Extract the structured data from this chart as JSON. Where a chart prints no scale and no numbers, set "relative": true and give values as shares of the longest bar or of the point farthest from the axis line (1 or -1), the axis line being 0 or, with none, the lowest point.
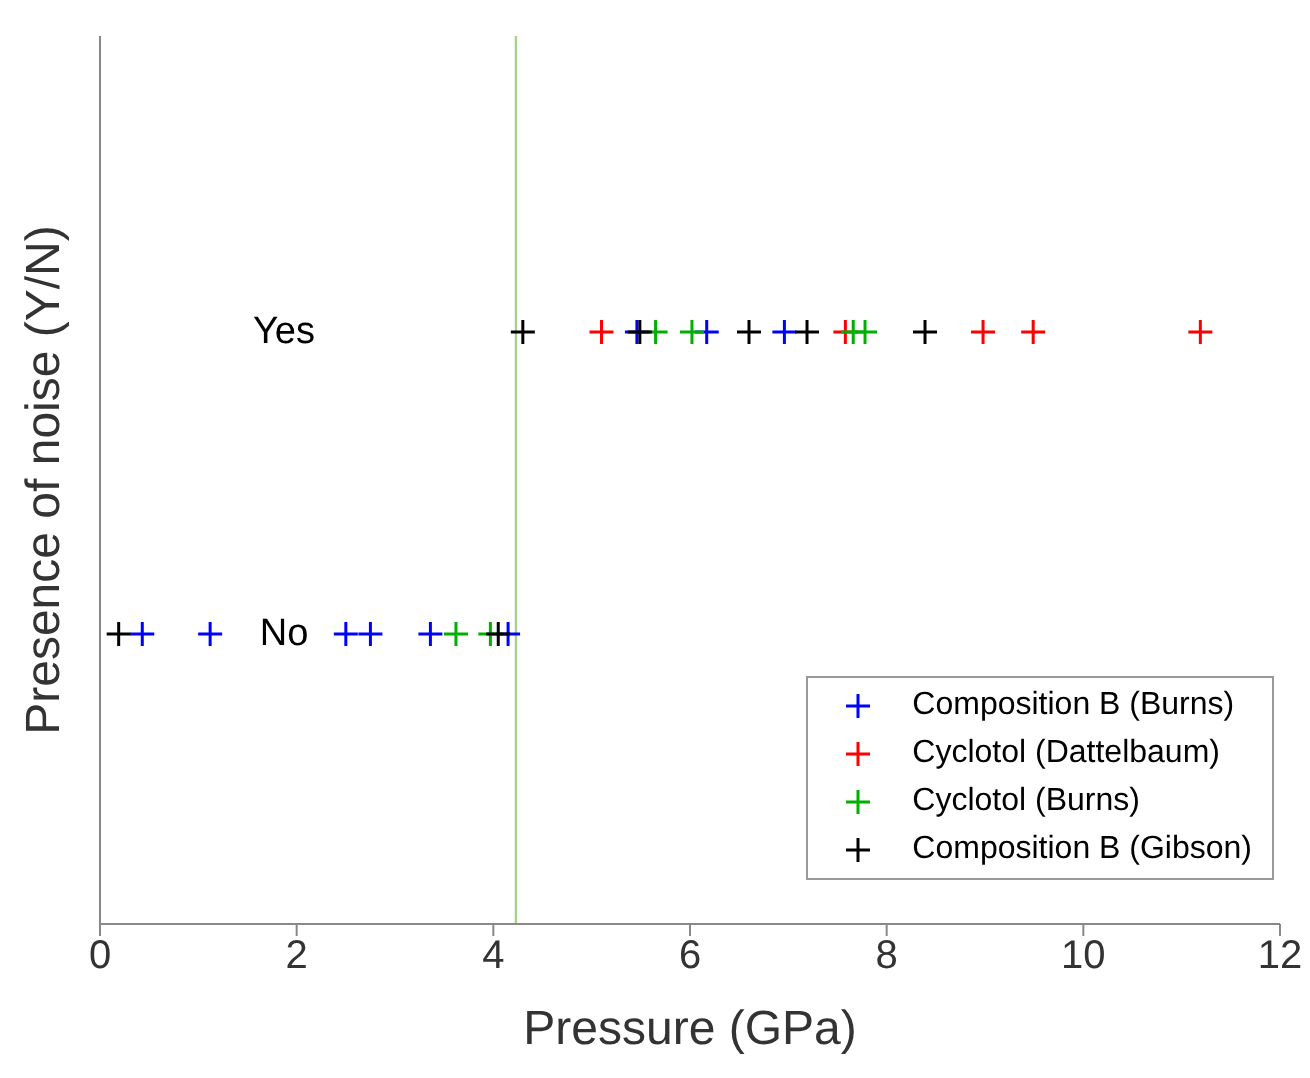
{
  "chart_data": {
    "type": "scatter",
    "xlabel": "Pressure (GPa)",
    "ylabel": "Presence of noise (Y/N)",
    "xlim": [
      0,
      12
    ],
    "xticks": [
      0,
      2,
      4,
      6,
      8,
      10,
      12
    ],
    "relative": true,
    "tick_labels": "x",
    "marker": "cross",
    "legend": "bottom right",
    "grid": false,
    "series": [
      {
        "name": "Composition B (Burns)",
        "color": "#0000ff",
        "x": [
          0.43,
          1.12,
          2.5,
          2.75,
          3.36,
          4.15,
          5.46,
          6.17,
          6.96
        ],
        "values": [
          0.49,
          0.49,
          0.49,
          0.49,
          0.49,
          0.49,
          1,
          1,
          1
        ]
      },
      {
        "name": "Cyclotol (Dattelbaum)",
        "color": "#ff0000",
        "x": [
          5.1,
          7.58,
          8.98,
          9.49,
          11.19
        ],
        "values": [
          1,
          1,
          1,
          1,
          1
        ]
      },
      {
        "name": "Cyclotol (Burns)",
        "color": "#00b000",
        "x": [
          3.62,
          3.97,
          5.65,
          6.02,
          7.66,
          7.78
        ],
        "values": [
          0.49,
          0.49,
          1,
          1,
          1,
          1
        ]
      },
      {
        "name": "Composition B (Gibson)",
        "color": "#000000",
        "x": [
          0.19,
          4.05,
          4.3,
          5.49,
          6.6,
          7.19,
          8.39
        ],
        "values": [
          0.49,
          0.49,
          1,
          1,
          1,
          1,
          1
        ]
      }
    ],
    "ref_lines": [
      {
        "axis": "x",
        "value": 4.23,
        "color": "#a8d08d"
      }
    ],
    "annotations": [
      "Yes",
      "No"
    ]
  }
}
